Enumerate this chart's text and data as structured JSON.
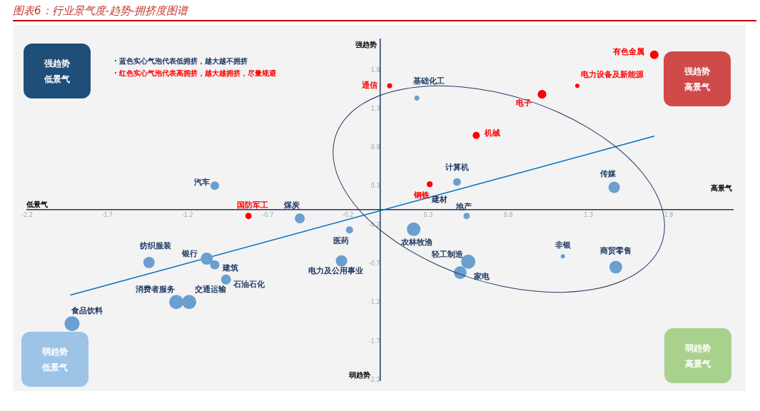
{
  "chart_data": {
    "type": "bubble",
    "title": "图表6：行业景气度-趋势-拥挤度图谱",
    "xlim": [
      -2.2,
      2.2
    ],
    "ylim": [
      -2.2,
      2.2
    ],
    "xticks": [
      -2.2,
      -1.7,
      -1.2,
      -0.7,
      -0.2,
      0.3,
      0.8,
      1.3,
      1.8
    ],
    "yticks": [
      -2.2,
      -1.7,
      -1.2,
      -0.7,
      -0.2,
      0.3,
      0.8,
      1.3,
      1.8
    ],
    "grid": false,
    "legend": false,
    "series": [
      {
        "color": "#ff0000",
        "x": [
          1.71,
          1.23,
          1.01,
          0.06,
          0.6,
          0.31,
          -0.82
        ],
        "values": [
          2.0,
          1.6,
          1.49,
          1.6,
          0.96,
          0.33,
          -0.08
        ],
        "sizes": [
          0.33,
          0.08,
          0.33,
          0.11,
          0.23,
          0.15,
          0.18
        ]
      },
      {
        "color": "#6a9fd0",
        "x": [
          0.23,
          0.48,
          1.46,
          0.21,
          0.54,
          -0.19,
          -0.5,
          -1.03,
          -0.24,
          0.55,
          0.5,
          1.14,
          1.47,
          -1.44,
          -1.08,
          -1.03,
          -0.96,
          -1.27,
          -1.19,
          -1.92
        ],
        "values": [
          1.44,
          0.36,
          0.29,
          -0.25,
          -0.08,
          -0.26,
          -0.11,
          0.31,
          -0.66,
          -0.67,
          -0.81,
          -0.6,
          -0.74,
          -0.68,
          -0.63,
          -0.71,
          -0.9,
          -1.19,
          -1.19,
          -1.47
        ],
        "sizes": [
          0.11,
          0.27,
          0.58,
          0.82,
          0.18,
          0.23,
          0.44,
          0.33,
          0.58,
          0.91,
          0.73,
          0.08,
          0.73,
          0.58,
          0.66,
          0.38,
          0.44,
          0.91,
          0.91,
          1
        ]
      },
      {
        "type": "line",
        "color": "#0070c0",
        "x": [
          -1.93,
          1.71
        ],
        "values": [
          -1.1,
          0.95
        ],
        "marker": "none"
      }
    ],
    "annotations": [
      {
        "text": "有色金属",
        "x": 1.71,
        "y": 2.0
      },
      {
        "text": "电力设备及新能源",
        "x": 1.23,
        "y": 1.6
      },
      {
        "text": "电子",
        "x": 1.01,
        "y": 1.49
      },
      {
        "text": "通信",
        "x": 0.06,
        "y": 1.6
      },
      {
        "text": "机械",
        "x": 0.6,
        "y": 0.96
      },
      {
        "text": "钢铁",
        "x": 0.31,
        "y": 0.33
      },
      {
        "text": "国防军工",
        "x": -0.82,
        "y": -0.08
      },
      {
        "text": "基础化工",
        "x": 0.23,
        "y": 1.44
      },
      {
        "text": "计算机",
        "x": 0.48,
        "y": 0.36
      },
      {
        "text": "传媒",
        "x": 1.46,
        "y": 0.29
      },
      {
        "text": "农林牧渔",
        "x": 0.21,
        "y": -0.25
      },
      {
        "text": "地产",
        "x": 0.54,
        "y": -0.08
      },
      {
        "text": "医药",
        "x": -0.19,
        "y": -0.26
      },
      {
        "text": "煤炭",
        "x": -0.5,
        "y": -0.11
      },
      {
        "text": "汽车",
        "x": -1.03,
        "y": 0.31
      },
      {
        "text": "电力及公用事业",
        "x": -0.24,
        "y": -0.66
      },
      {
        "text": "轻工制造",
        "x": 0.55,
        "y": -0.67
      },
      {
        "text": "家电",
        "x": 0.5,
        "y": -0.81
      },
      {
        "text": "非银",
        "x": 1.14,
        "y": -0.6
      },
      {
        "text": "商贸零售",
        "x": 1.47,
        "y": -0.74
      },
      {
        "text": "纺织服装",
        "x": -1.44,
        "y": -0.68
      },
      {
        "text": "银行",
        "x": -1.08,
        "y": -0.63
      },
      {
        "text": "建筑",
        "x": -1.03,
        "y": -0.71
      },
      {
        "text": "石油石化",
        "x": -0.96,
        "y": -0.9
      },
      {
        "text": "消费者服务",
        "x": -1.27,
        "y": -1.19
      },
      {
        "text": "交通运输",
        "x": -1.19,
        "y": -1.19
      },
      {
        "text": "食品饮料",
        "x": -1.92,
        "y": -1.47
      },
      {
        "text": "建材",
        "x": 0.37,
        "y": 0.2
      },
      "· 蓝色实心气泡代表低拥挤，越大越不拥挤",
      "· 红色实心气泡代表高拥挤，越大越拥挤，尽量规避",
      "强趋势低景气",
      "强趋势高景气",
      "弱趋势低景气",
      "弱趋势高景气",
      "强趋势",
      "弱趋势",
      "低景气",
      "高景气"
    ]
  }
}
